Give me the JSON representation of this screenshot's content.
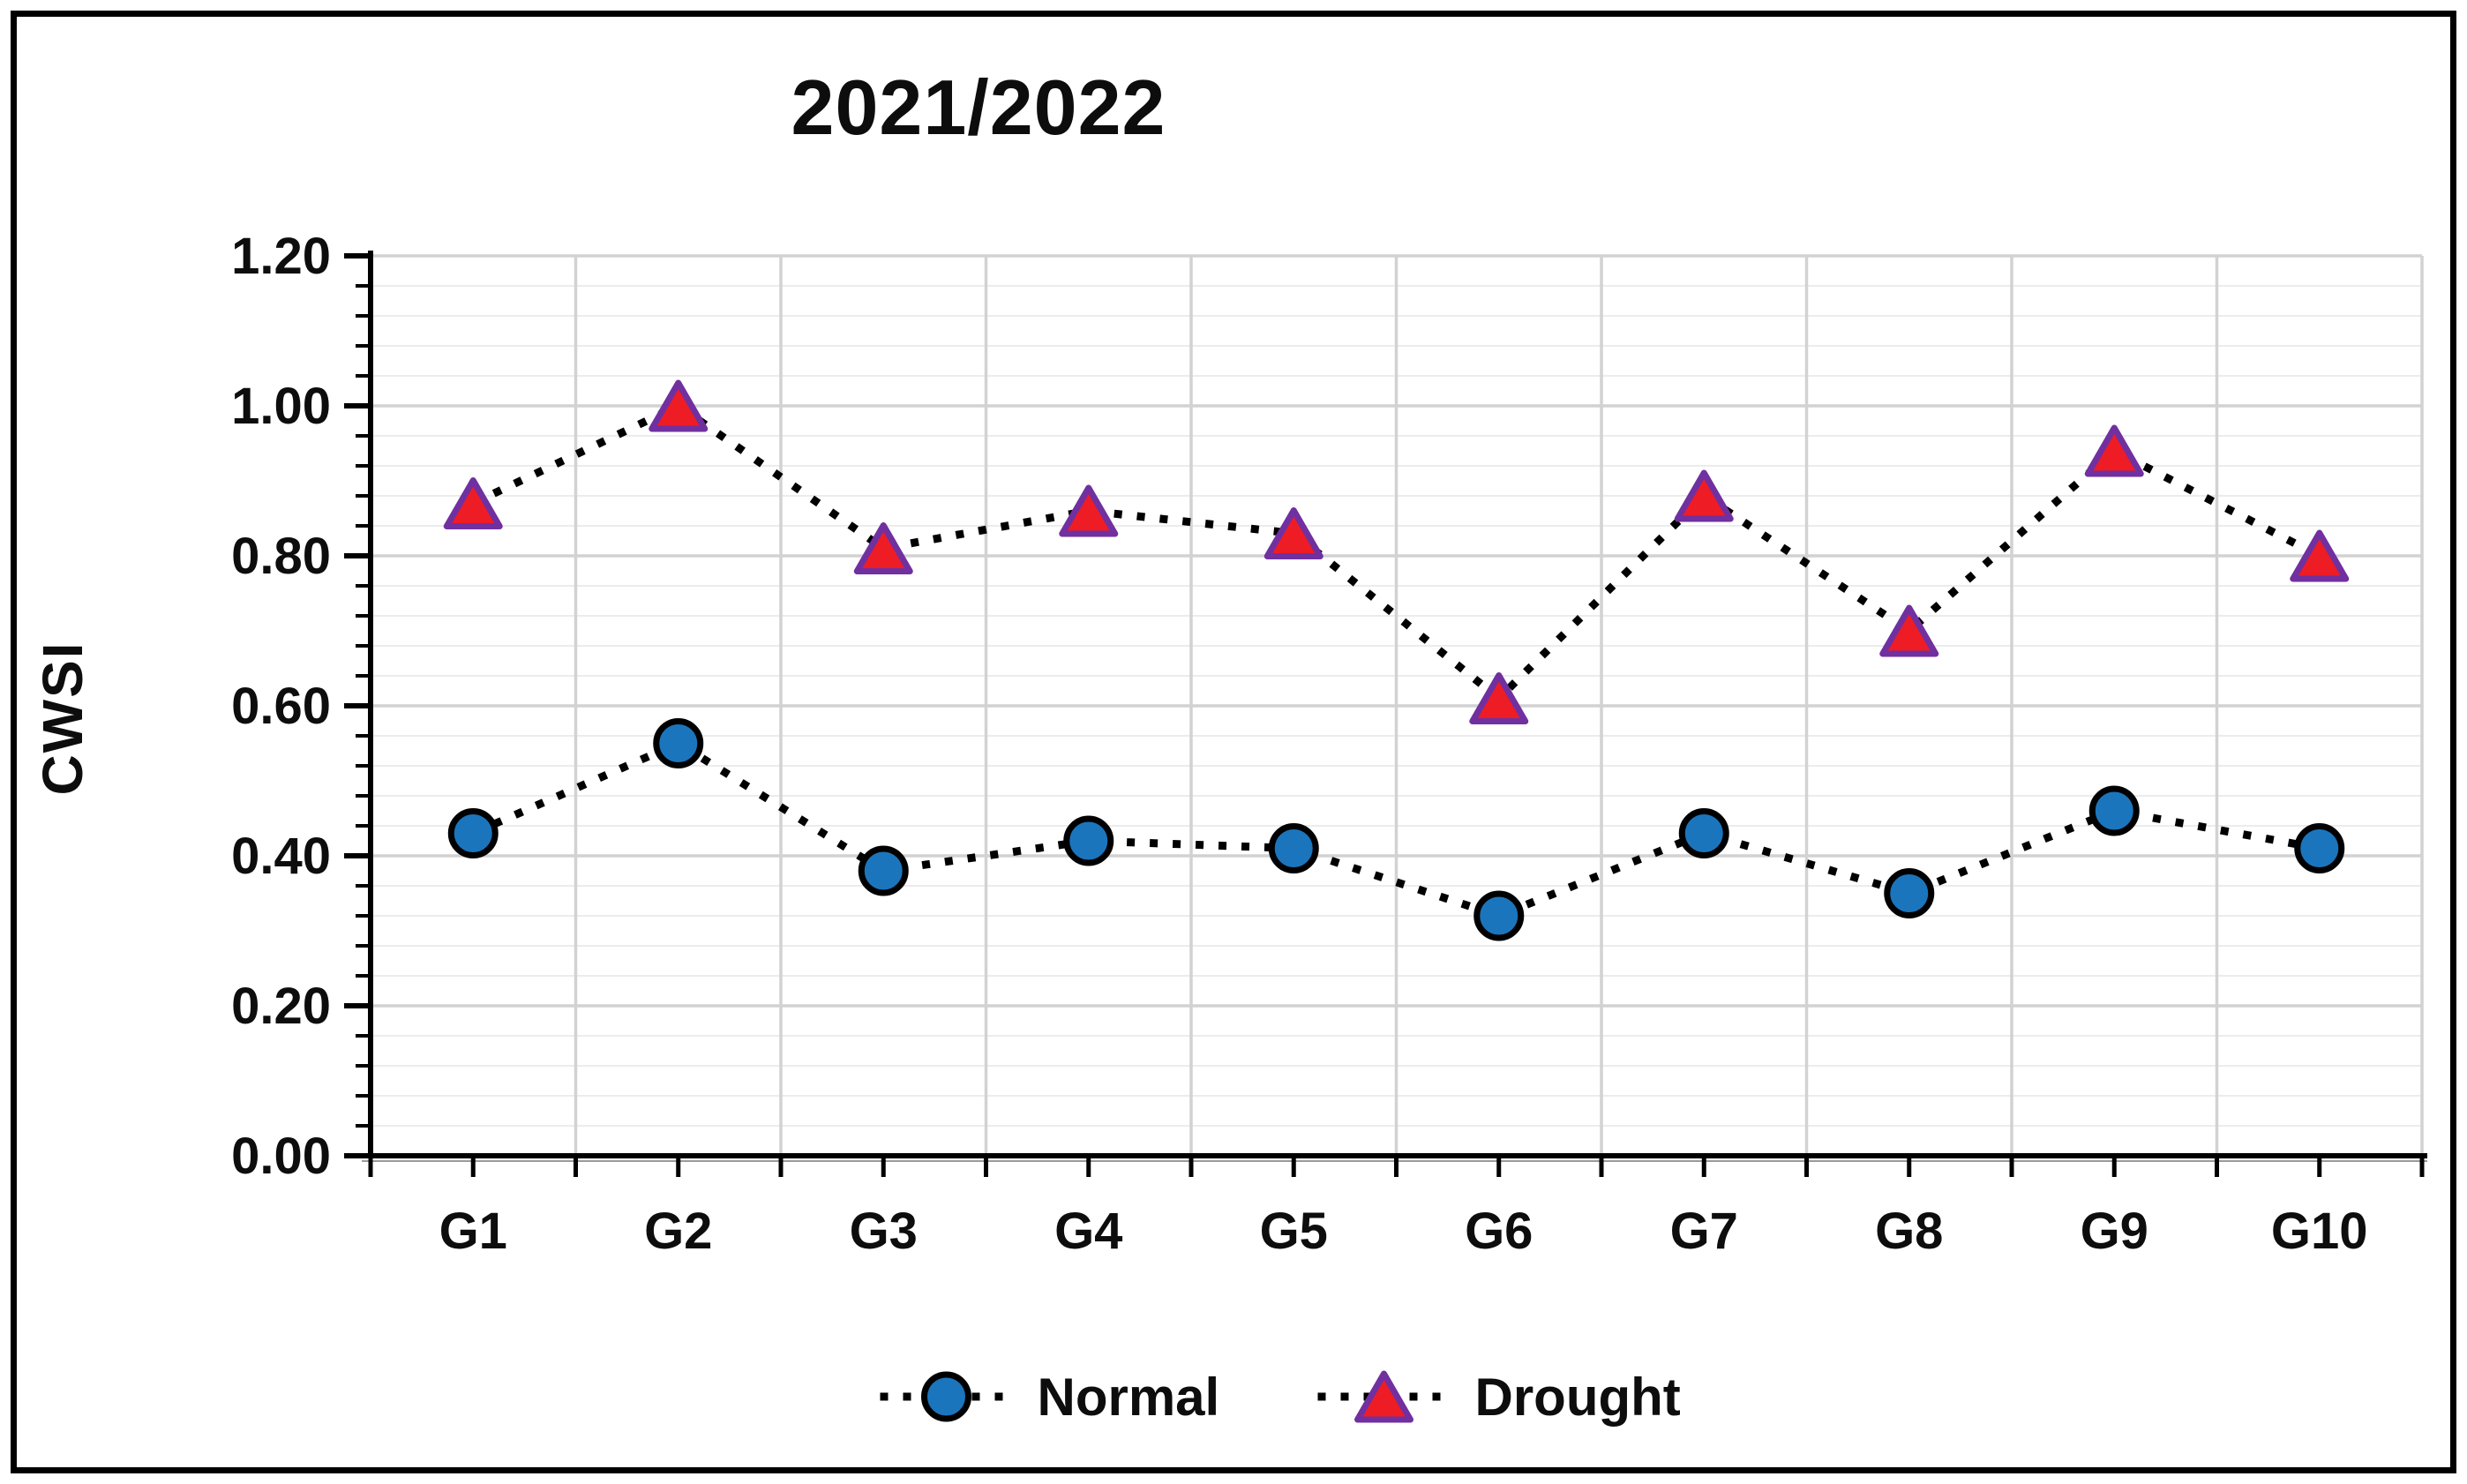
{
  "chart_data": {
    "type": "line",
    "title": "2021/2022",
    "xlabel": "",
    "ylabel": "CWSI",
    "categories": [
      "G1",
      "G2",
      "G3",
      "G4",
      "G5",
      "G6",
      "G7",
      "G8",
      "G9",
      "G10"
    ],
    "series": [
      {
        "name": "Normal",
        "marker_icon": "circle-marker-icon",
        "marker_shape": "circle",
        "marker_fill": "#1B75BC",
        "marker_stroke": "#000000",
        "line_color": "#000000",
        "line_style": "dotted",
        "values": [
          0.43,
          0.55,
          0.38,
          0.42,
          0.41,
          0.32,
          0.43,
          0.35,
          0.46,
          0.41
        ]
      },
      {
        "name": "Drought",
        "marker_icon": "triangle-marker-icon",
        "marker_shape": "triangle",
        "marker_fill": "#EE1C25",
        "marker_stroke": "#7030A0",
        "line_color": "#000000",
        "line_style": "dotted",
        "values": [
          0.87,
          1.0,
          0.81,
          0.86,
          0.83,
          0.61,
          0.88,
          0.7,
          0.94,
          0.8
        ]
      }
    ],
    "ylim": [
      0.0,
      1.2
    ],
    "ytick_step": 0.2,
    "yminor_step": 0.04,
    "ytick_labels": [
      "0.00",
      "0.20",
      "0.40",
      "0.60",
      "0.80",
      "1.00",
      "1.20"
    ],
    "grid": "on",
    "legend_position": "bottom",
    "colors": {
      "axis": "#000000",
      "major_grid": "#D2D2D2",
      "minor_grid": "#ECECEC",
      "background": "#FFFFFF",
      "border": "#000000"
    }
  }
}
